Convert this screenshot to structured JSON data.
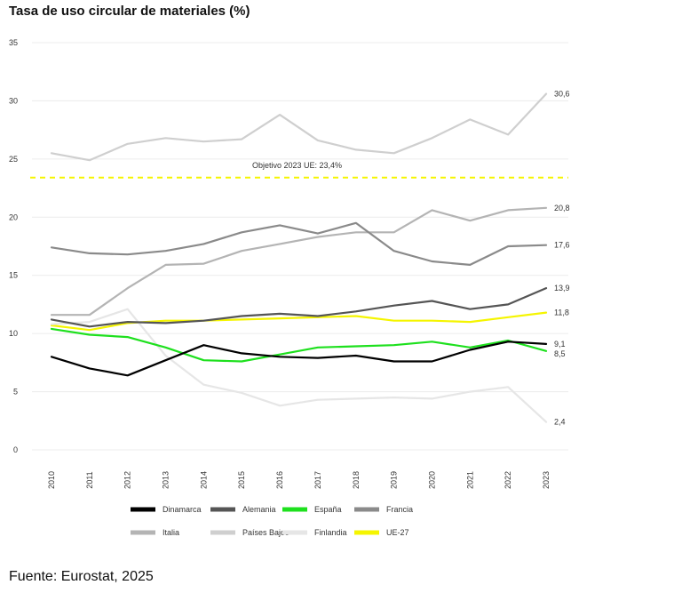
{
  "title": "Tasa de uso circular de materiales (%)",
  "source": "Fuente: Eurostat, 2025",
  "chart_data": {
    "type": "line",
    "x": [
      "2010",
      "2011",
      "2012",
      "2013",
      "2014",
      "2015",
      "2016",
      "2017",
      "2018",
      "2019",
      "2020",
      "2021",
      "2022",
      "2023"
    ],
    "ylim": [
      0,
      35
    ],
    "yticks": [
      0,
      5,
      10,
      15,
      20,
      25,
      30,
      35
    ],
    "grid": true,
    "legend_position": "bottom",
    "reference_line": {
      "value": 23.4,
      "label": "Objetivo 2023 UE: 23,4%",
      "color": "#f5f500"
    },
    "series": [
      {
        "name": "Dinamarca",
        "color": "#000000",
        "width": 2.2,
        "values": [
          8.0,
          7.0,
          6.4,
          7.7,
          9.0,
          8.3,
          8.0,
          7.9,
          8.1,
          7.6,
          7.6,
          8.6,
          9.3,
          9.1
        ],
        "end_label": "9,1"
      },
      {
        "name": "Alemania",
        "color": "#555555",
        "width": 2.2,
        "values": [
          11.2,
          10.6,
          11.0,
          10.9,
          11.1,
          11.5,
          11.7,
          11.5,
          11.9,
          12.4,
          12.8,
          12.1,
          12.5,
          13.9
        ],
        "end_label": "13,9"
      },
      {
        "name": "España",
        "color": "#1ee01e",
        "width": 2.2,
        "values": [
          10.4,
          9.9,
          9.7,
          8.8,
          7.7,
          7.6,
          8.2,
          8.8,
          8.9,
          9.0,
          9.3,
          8.8,
          9.4,
          8.5
        ],
        "end_label": "8,5"
      },
      {
        "name": "Francia",
        "color": "#8a8a8a",
        "width": 2.2,
        "values": [
          17.4,
          16.9,
          16.8,
          17.1,
          17.7,
          18.7,
          19.3,
          18.6,
          19.5,
          17.1,
          16.2,
          15.9,
          17.5,
          17.6
        ],
        "end_label": "17,6"
      },
      {
        "name": "Italia",
        "color": "#b4b4b4",
        "width": 2.2,
        "values": [
          11.6,
          11.6,
          13.9,
          15.9,
          16.0,
          17.1,
          17.7,
          18.3,
          18.7,
          18.7,
          20.6,
          19.7,
          20.6,
          20.8
        ],
        "end_label": "20,8"
      },
      {
        "name": "Países Bajos",
        "color": "#cfcfcf",
        "width": 2.2,
        "values": [
          25.5,
          24.9,
          26.3,
          26.8,
          26.5,
          26.7,
          28.8,
          26.6,
          25.8,
          25.5,
          26.8,
          28.4,
          27.1,
          30.6
        ],
        "end_label": "30,6"
      },
      {
        "name": "Finlandia",
        "color": "#e6e6e6",
        "width": 2.2,
        "values": [
          10.8,
          11.0,
          12.1,
          8.1,
          5.6,
          4.9,
          3.8,
          4.3,
          4.4,
          4.5,
          4.4,
          5.0,
          5.4,
          2.4
        ],
        "end_label": "2,4"
      },
      {
        "name": "UE-27",
        "color": "#f5f500",
        "width": 2.2,
        "values": [
          10.7,
          10.3,
          10.9,
          11.1,
          11.1,
          11.2,
          11.3,
          11.4,
          11.5,
          11.1,
          11.1,
          11.0,
          11.4,
          11.8
        ],
        "end_label": "11,8"
      }
    ]
  }
}
